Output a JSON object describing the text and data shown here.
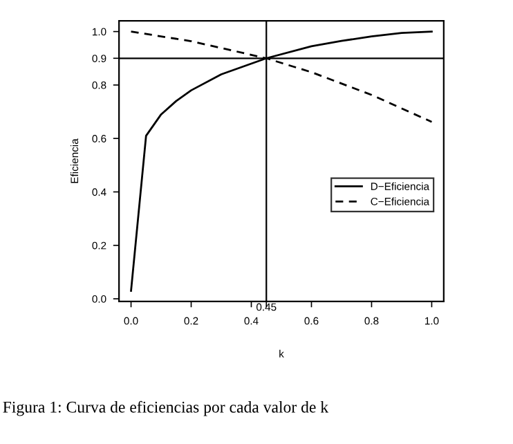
{
  "chart_data": {
    "type": "line",
    "xlabel": "k",
    "ylabel": "Eficiencia",
    "annotations": [
      "Figura 1: Curva de eficiencias por cada valor de k"
    ],
    "series": [
      {
        "name": "D−Eficiencia",
        "color": "#000000",
        "line_style": "solid",
        "x": [
          0,
          0.05,
          0.1,
          0.15,
          0.2,
          0.3,
          0.45,
          0.6,
          0.7,
          0.8,
          0.9,
          1.0
        ],
        "values": [
          0.03,
          0.61,
          0.69,
          0.74,
          0.78,
          0.84,
          0.9,
          0.945,
          0.965,
          0.982,
          0.995,
          1.0
        ]
      },
      {
        "name": "C−Eficiencia",
        "color": "#000000",
        "line_style": "dashed",
        "x": [
          0,
          0.2,
          0.45,
          0.6,
          0.8,
          1.0
        ],
        "values": [
          1.0,
          0.964,
          0.9,
          0.848,
          0.763,
          0.662
        ]
      }
    ],
    "xlim": [
      -0.04,
      1.04
    ],
    "ylim": [
      -0.01,
      1.04
    ],
    "xticks": [
      {
        "value": 0,
        "label": "0.0"
      },
      {
        "value": 0.2,
        "label": "0.2"
      },
      {
        "value": 0.4,
        "label": "0.4"
      },
      {
        "value": 0.45,
        "label": null
      },
      {
        "value": 0.6,
        "label": "0.6"
      },
      {
        "value": 0.8,
        "label": "0.8"
      },
      {
        "value": 1.0,
        "label": "1.0"
      }
    ],
    "yticks": [
      {
        "value": 0,
        "label": "0.0"
      },
      {
        "value": 0.2,
        "label": "0.2"
      },
      {
        "value": 0.4,
        "label": "0.4"
      },
      {
        "value": 0.6,
        "label": "0.6"
      },
      {
        "value": 0.8,
        "label": "0.8"
      },
      {
        "value": 0.9,
        "label": "0.9"
      },
      {
        "value": 1.0,
        "label": "1.0"
      }
    ],
    "ref_lines": [
      {
        "axis": "x",
        "value": 0.45,
        "label": "0.45",
        "color": "#000000"
      },
      {
        "axis": "y",
        "value": 0.9,
        "color": "#000000"
      }
    ],
    "grid": false,
    "legend": "right"
  }
}
